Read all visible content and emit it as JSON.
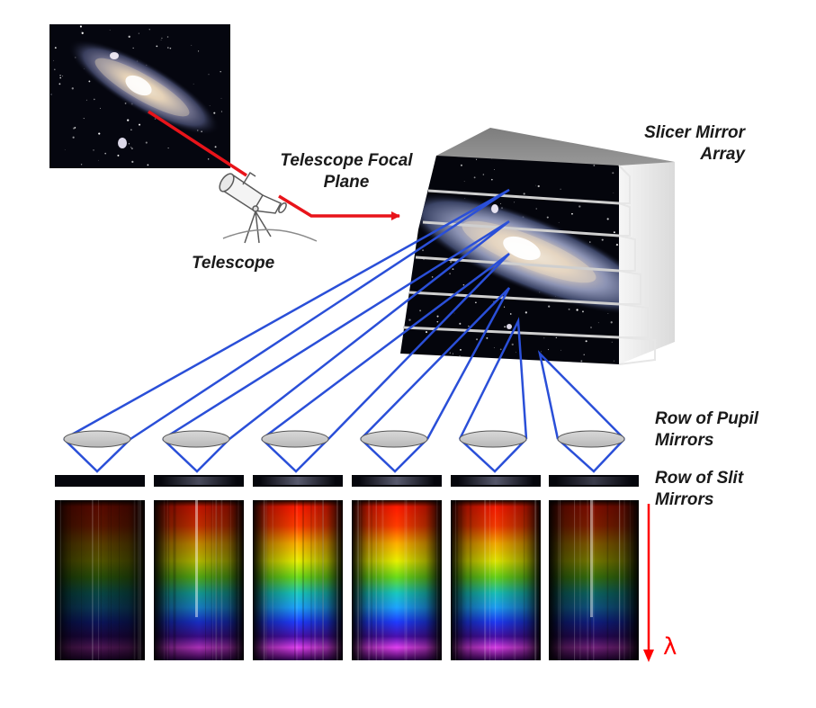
{
  "labels": {
    "slicer_line1": "Slicer Mirror",
    "slicer_line2": "Array",
    "focal_line1": "Telescope Focal",
    "focal_line2": "Plane",
    "telescope": "Telescope",
    "pupil_line1": "Row of Pupil",
    "pupil_line2": "Mirrors",
    "slit_line1": "Row of Slit",
    "slit_line2": "Mirrors",
    "lambda": "λ"
  },
  "icons": [
    "galaxy-image",
    "telescope-icon",
    "slicer-mirror-array",
    "pupil-mirror",
    "slit-mirror",
    "spectrum-strip",
    "wavelength-arrow"
  ],
  "colors": {
    "red_ray": "#e8141a",
    "blue_ray": "#2a4fd8",
    "mirror_fill": "#c9c9c9",
    "box_top": "#8f8f8f",
    "box_side": "#e9e9e9",
    "background": "#ffffff"
  },
  "spectra": {
    "count": 6,
    "intensity": [
      0.35,
      0.75,
      1.0,
      1.0,
      0.95,
      0.5
    ]
  }
}
